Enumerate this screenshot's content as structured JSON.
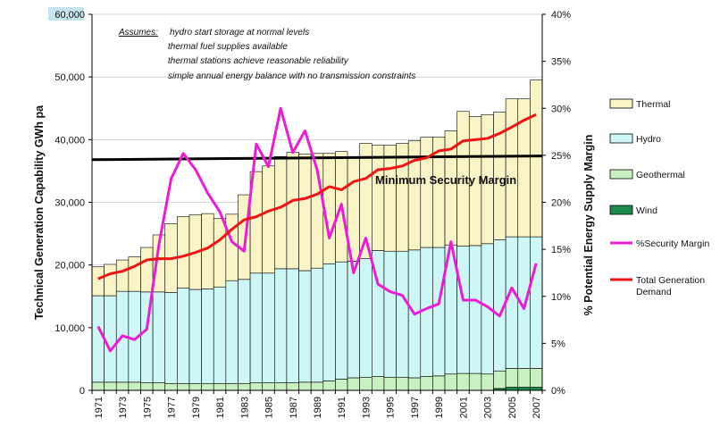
{
  "chart_data": {
    "type": "bar",
    "x": [
      1971,
      1972,
      1973,
      1974,
      1975,
      1976,
      1977,
      1978,
      1979,
      1980,
      1981,
      1982,
      1983,
      1984,
      1985,
      1986,
      1987,
      1988,
      1989,
      1990,
      1991,
      1992,
      1993,
      1994,
      1995,
      1996,
      1997,
      1998,
      1999,
      2000,
      2001,
      2002,
      2003,
      2004,
      2005,
      2006,
      2007
    ],
    "x_tick_labels": [
      "1971",
      "1973",
      "1975",
      "1977",
      "1979",
      "1981",
      "1983",
      "1985",
      "1987",
      "1989",
      "1991",
      "1993",
      "1995",
      "1997",
      "1999",
      "2001",
      "2003",
      "2005",
      "2007"
    ],
    "ylim": [
      0,
      60000
    ],
    "y_ticks": [
      "0",
      "10,000",
      "20,000",
      "30,000",
      "40,000",
      "50,000",
      "60,000"
    ],
    "y_highlight": "60,000",
    "ylabel": "Technical Generation Capability GWh pa",
    "y2lim": [
      0,
      40
    ],
    "y2_ticks": [
      "0%",
      "5%",
      "10%",
      "15%",
      "20%",
      "25%",
      "30%",
      "35%",
      "40%"
    ],
    "y2label": "% Potential Energy Supply Margin",
    "stacked_series": [
      {
        "name": "Wind",
        "color": "#1b8a4a",
        "values": [
          0,
          0,
          0,
          0,
          0,
          0,
          0,
          0,
          0,
          0,
          0,
          0,
          0,
          0,
          0,
          0,
          0,
          0,
          0,
          0,
          0,
          0,
          0,
          0,
          0,
          0,
          0,
          0,
          0,
          0,
          0,
          0,
          0,
          300,
          500,
          500,
          500
        ]
      },
      {
        "name": "Geothermal",
        "color": "#c8f0c0",
        "values": [
          1300,
          1300,
          1300,
          1300,
          1200,
          1200,
          1100,
          1100,
          1100,
          1100,
          1100,
          1100,
          1100,
          1200,
          1200,
          1200,
          1200,
          1300,
          1300,
          1500,
          1800,
          2000,
          2100,
          2200,
          2100,
          2100,
          2000,
          2200,
          2300,
          2600,
          2700,
          2700,
          2600,
          2800,
          3000,
          3000,
          3000
        ]
      },
      {
        "name": "Hydro",
        "color": "#cdf6f6",
        "values": [
          13800,
          13800,
          14500,
          14500,
          14500,
          14500,
          14500,
          15200,
          15000,
          15100,
          15400,
          16400,
          16600,
          17500,
          17500,
          18200,
          18200,
          17800,
          18200,
          18700,
          18700,
          18600,
          18900,
          20100,
          20100,
          20100,
          20400,
          20600,
          20500,
          20600,
          20300,
          20400,
          20800,
          20900,
          21000,
          21000,
          21000
        ]
      },
      {
        "name": "Thermal",
        "color": "#f8f4c6",
        "values": [
          4600,
          5000,
          5000,
          5500,
          7100,
          9100,
          11000,
          11400,
          11900,
          12000,
          10900,
          10600,
          13500,
          16200,
          17100,
          17900,
          18600,
          18600,
          18300,
          17600,
          17600,
          16600,
          18400,
          16800,
          16900,
          17200,
          17400,
          17600,
          17600,
          18200,
          21500,
          20600,
          20600,
          20400,
          22000,
          22000,
          25000
        ]
      }
    ],
    "line_series": [
      {
        "name": "%Security Margin",
        "color": "#ee1bd6",
        "axis": "secondary",
        "values": [
          6.8,
          4.2,
          5.8,
          5.4,
          6.5,
          15.5,
          22.5,
          25.2,
          23.5,
          21,
          19,
          15.8,
          14.8,
          26.2,
          23.8,
          30,
          25.3,
          27.6,
          23.5,
          16.2,
          19.8,
          12.5,
          16.2,
          11.3,
          10.5,
          10.1,
          8.1,
          8.7,
          9.2,
          15.8,
          9.6,
          9.6,
          8.9,
          7.9,
          10.9,
          8.7,
          13.5
        ]
      },
      {
        "name": "Total Generation Demand",
        "color": "#ee1414",
        "axis": "primary",
        "values": [
          17800,
          18600,
          19000,
          19800,
          20800,
          21000,
          21000,
          21400,
          22000,
          22700,
          24000,
          25700,
          27200,
          27700,
          28600,
          29200,
          30300,
          30600,
          31300,
          32500,
          32000,
          33300,
          33800,
          35200,
          35400,
          35800,
          36700,
          37100,
          38200,
          38500,
          39800,
          40000,
          40200,
          41000,
          42000,
          43100,
          44000
        ]
      }
    ],
    "security_margin_line": {
      "label": "Minimum Security Margin",
      "y_start": 36800,
      "y_end": 37400,
      "color": "#000000"
    },
    "assumptions": {
      "heading": "Assumes:",
      "lines": [
        "hydro start storage at normal levels",
        "thermal fuel supplies available",
        "thermal stations achieve reasonable reliability",
        "simple annual energy balance with no transmission constraints"
      ]
    },
    "legend": {
      "placement": "right",
      "entries": [
        {
          "label": "Thermal",
          "kind": "box",
          "color": "#f8f4c6"
        },
        {
          "label": "Hydro",
          "kind": "box",
          "color": "#cdf6f6"
        },
        {
          "label": "Geothermal",
          "kind": "box",
          "color": "#c8f0c0"
        },
        {
          "label": "Wind",
          "kind": "box",
          "color": "#1b8a4a"
        },
        {
          "label": "%Security Margin",
          "kind": "line",
          "color": "#ee1bd6"
        },
        {
          "label": "Total Generation Demand",
          "kind": "line",
          "color": "#ee1414",
          "lines": [
            "Total Generation",
            "Demand"
          ]
        }
      ]
    },
    "grid": true
  }
}
